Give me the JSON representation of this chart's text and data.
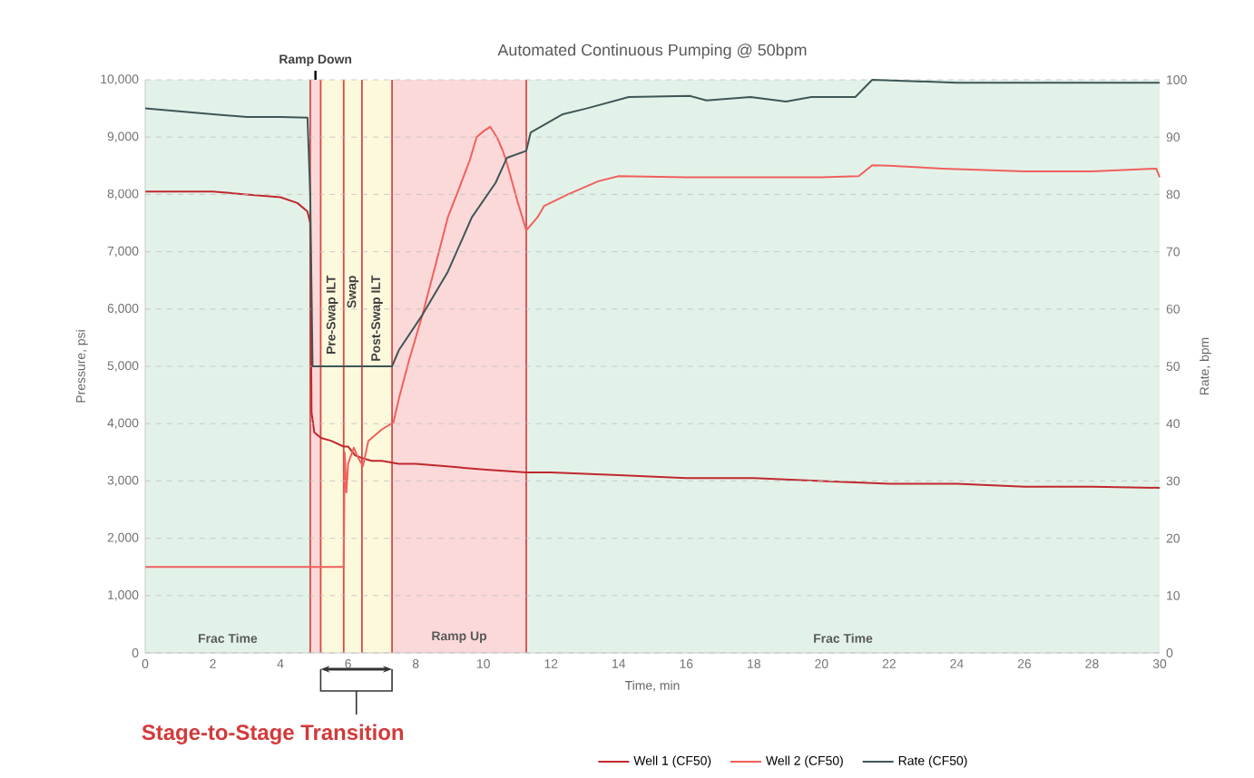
{
  "chart_data": {
    "type": "line",
    "title": "Automated Continuous Pumping @ 50bpm",
    "xlabel": "Time, min",
    "ylabel": "Pressure, psi",
    "y2label": "Rate, bpm",
    "xlim": [
      0,
      30
    ],
    "xticks": [
      0,
      2,
      4,
      6,
      8,
      10,
      12,
      14,
      16,
      18,
      20,
      22,
      24,
      26,
      28,
      30
    ],
    "ylim": [
      0,
      10000
    ],
    "yticks": [
      0,
      {
        "value": 1000,
        "label": "1,000"
      },
      {
        "value": 2000,
        "label": "2,000"
      },
      {
        "value": 3000,
        "label": "3,000"
      },
      {
        "value": 4000,
        "label": "4,000"
      },
      {
        "value": 5000,
        "label": "5,000"
      },
      {
        "value": 6000,
        "label": "6,000"
      },
      {
        "value": 7000,
        "label": "7,000"
      },
      {
        "value": 8000,
        "label": "8,000"
      },
      {
        "value": 9000,
        "label": "9,000"
      },
      {
        "value": 10000,
        "label": "10,000"
      }
    ],
    "y2lim": [
      0,
      100
    ],
    "y2ticks": [
      0,
      10,
      20,
      30,
      40,
      50,
      60,
      70,
      80,
      90,
      100
    ],
    "grid": "y",
    "legend": "bottom",
    "marker": "none",
    "line_style": "solid",
    "series": [
      {
        "name": "Well 1 (CF50)",
        "color": "#c0282d",
        "x": [
          0,
          1,
          2,
          3,
          4,
          4.5,
          4.8,
          4.88,
          4.92,
          5.0,
          5.2,
          5.5,
          5.87,
          6.0,
          6.2,
          6.41,
          6.7,
          7.0,
          7.5,
          8,
          9,
          10,
          11.27,
          12,
          14,
          16,
          18,
          20,
          22,
          24,
          26,
          28,
          30
        ],
        "values": [
          8050,
          8050,
          8050,
          8000,
          7950,
          7850,
          7700,
          7500,
          4200,
          3850,
          3750,
          3700,
          3600,
          3600,
          3450,
          3400,
          3350,
          3350,
          3300,
          3300,
          3250,
          3200,
          3150,
          3150,
          3100,
          3050,
          3050,
          3000,
          2950,
          2950,
          2900,
          2900,
          2880
        ]
      },
      {
        "name": "Well 2 (CF50)",
        "color": "#f0605d",
        "x": [
          0,
          2,
          4,
          5.87,
          5.9,
          5.95,
          6.0,
          6.17,
          6.3,
          6.44,
          6.6,
          7.0,
          7.34,
          7.5,
          7.8,
          8.2,
          8.6,
          8.95,
          9.3,
          9.6,
          9.8,
          10.0,
          10.2,
          10.4,
          10.57,
          10.7,
          11.0,
          11.27,
          11.6,
          11.8,
          12.5,
          13.4,
          14,
          16,
          18,
          20,
          21.1,
          21.5,
          22,
          23.6,
          26,
          28,
          29.9,
          30
        ],
        "values": [
          1500,
          1500,
          1500,
          1500,
          3500,
          2800,
          3300,
          3580,
          3400,
          3260,
          3700,
          3900,
          4020,
          4430,
          5100,
          5900,
          6800,
          7600,
          8130,
          8600,
          9000,
          9100,
          9180,
          9000,
          8770,
          8540,
          7900,
          7370,
          7600,
          7800,
          8000,
          8230,
          8320,
          8300,
          8300,
          8300,
          8320,
          8510,
          8500,
          8450,
          8400,
          8400,
          8450,
          8300
        ]
      },
      {
        "name": "Rate (CF50)",
        "color": "#3e5656",
        "axis": "y2",
        "x": [
          0,
          1,
          2,
          3,
          4,
          4.8,
          4.88,
          4.95,
          5.2,
          6,
          7,
          7.3,
          7.5,
          8.2,
          8.95,
          9.66,
          10.36,
          10.7,
          11.27,
          11.4,
          12.35,
          13.05,
          14.3,
          16.1,
          16.6,
          17.9,
          18.95,
          19.7,
          21,
          21.5,
          24,
          27,
          30
        ],
        "values": [
          95,
          94.5,
          94,
          93.5,
          93.5,
          93.4,
          80,
          50,
          50,
          50,
          50,
          50,
          52.8,
          59,
          66.5,
          76,
          82,
          86.4,
          87.6,
          90.8,
          94,
          95,
          97,
          97.2,
          96.4,
          97,
          96.2,
          97,
          97,
          100,
          99.5,
          99.5,
          99.5
        ]
      }
    ],
    "bands": [
      {
        "axis": "x",
        "from": 0,
        "to": 4.88,
        "label": "Frac Time",
        "color": "#e3f2e9"
      },
      {
        "axis": "x",
        "from": 4.88,
        "to": 5.19,
        "label": "Ramp Down",
        "color": "#fbd9d9"
      },
      {
        "axis": "x",
        "from": 5.19,
        "to": 5.87,
        "label": "Pre-Swap ILT",
        "color": "#fdf9dc"
      },
      {
        "axis": "x",
        "from": 5.87,
        "to": 6.41,
        "label": "Swap",
        "color": "#fdf9dc"
      },
      {
        "axis": "x",
        "from": 6.41,
        "to": 7.3,
        "label": "Post-Swap ILT",
        "color": "#fdf9dc"
      },
      {
        "axis": "x",
        "from": 7.3,
        "to": 11.27,
        "label": "Ramp Up",
        "color": "#fbd9d9"
      },
      {
        "axis": "x",
        "from": 11.27,
        "to": 30,
        "label": "Frac Time",
        "color": "#e3f2e9"
      }
    ],
    "ref_lines": [
      {
        "axis": "x",
        "value": 4.88,
        "color": "#d9484a"
      },
      {
        "axis": "x",
        "value": 5.19,
        "color": "#d9484a"
      },
      {
        "axis": "x",
        "value": 5.87,
        "color": "#d9484a"
      },
      {
        "axis": "x",
        "value": 6.41,
        "color": "#d9484a"
      },
      {
        "axis": "x",
        "value": 7.3,
        "color": "#d9484a"
      },
      {
        "axis": "x",
        "value": 11.27,
        "color": "#d9484a"
      }
    ],
    "annotations": [
      "Stage-to-Stage Transition"
    ]
  }
}
